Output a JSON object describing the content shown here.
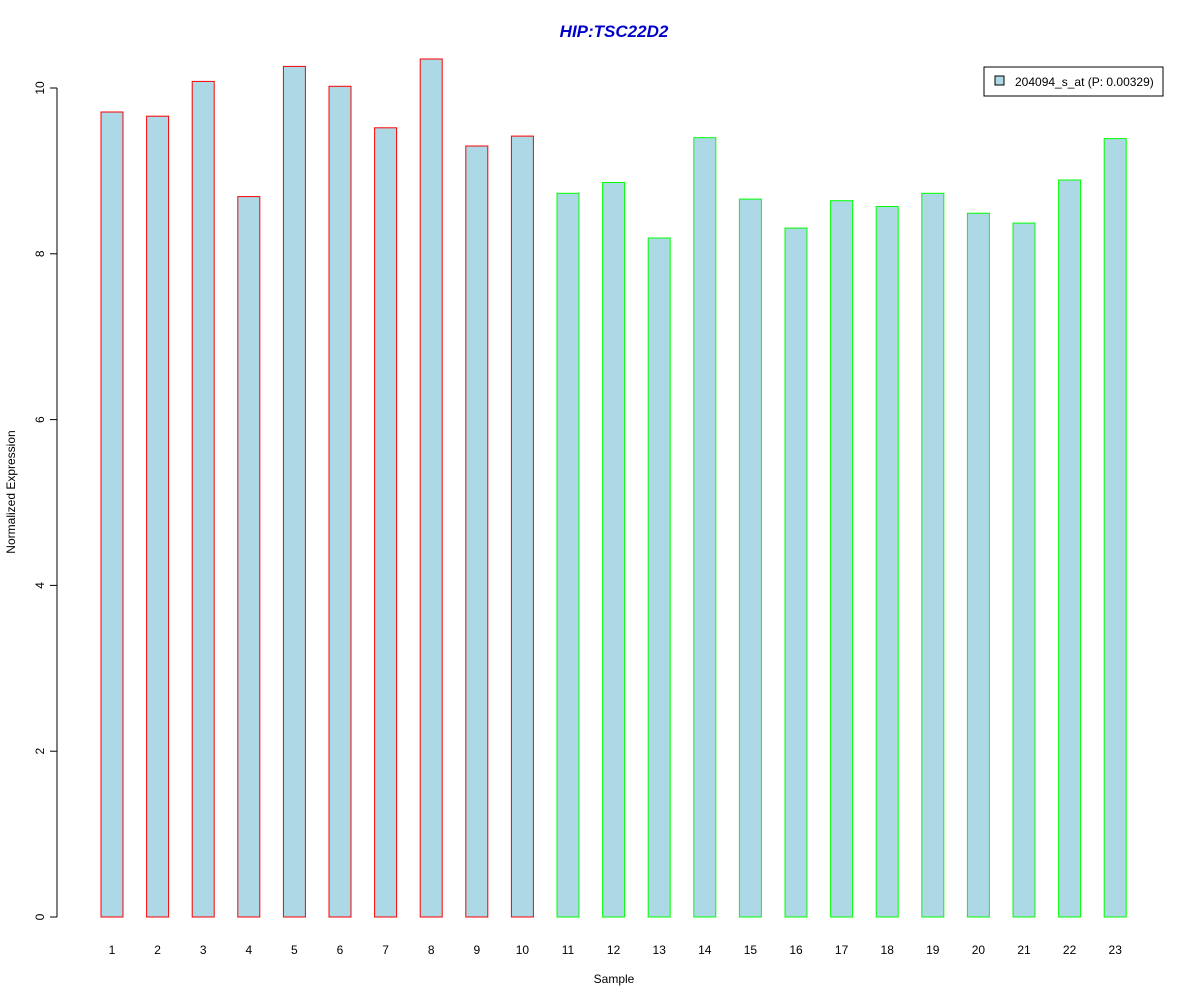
{
  "chart_data": {
    "type": "bar",
    "title": "HIP:TSC22D2",
    "xlabel": "Sample",
    "ylabel": "Normalized Expression",
    "ylim": [
      0,
      10
    ],
    "yticks": [
      0,
      2,
      4,
      6,
      8,
      10
    ],
    "categories": [
      "1",
      "2",
      "3",
      "4",
      "5",
      "6",
      "7",
      "8",
      "9",
      "10",
      "11",
      "12",
      "13",
      "14",
      "15",
      "16",
      "17",
      "18",
      "19",
      "20",
      "21",
      "22",
      "23"
    ],
    "series": [
      {
        "name": "204094_s_at (P: 0.00329)",
        "values": [
          9.71,
          9.66,
          10.08,
          8.69,
          10.26,
          10.02,
          9.52,
          10.35,
          9.3,
          9.42,
          8.73,
          8.86,
          8.19,
          9.4,
          8.66,
          8.31,
          8.64,
          8.57,
          8.73,
          8.49,
          8.37,
          8.89,
          9.39
        ]
      }
    ],
    "bar_fill": "#add8e6",
    "group_border_colors": [
      "#ff0000",
      "#ff0000",
      "#ff0000",
      "#ff0000",
      "#ff0000",
      "#ff0000",
      "#ff0000",
      "#ff0000",
      "#ff0000",
      "#ff0000",
      "#00ff00",
      "#00ff00",
      "#00ff00",
      "#00ff00",
      "#00ff00",
      "#00ff00",
      "#00ff00",
      "#00ff00",
      "#00ff00",
      "#00ff00",
      "#00ff00",
      "#00ff00",
      "#00ff00"
    ],
    "title_color": "#0000cc",
    "grid": false,
    "legend_position": "top-right"
  }
}
